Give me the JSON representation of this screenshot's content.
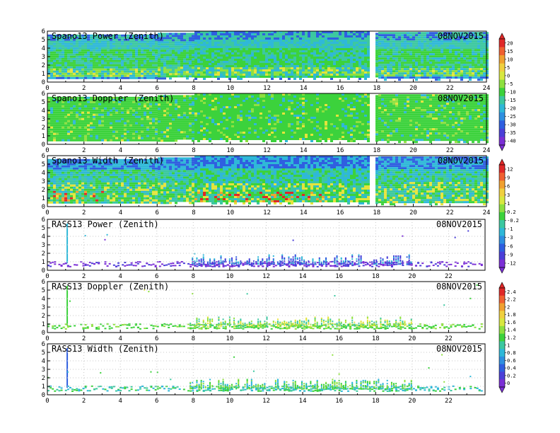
{
  "date": "08NOV2015",
  "xticks": [
    0,
    2,
    4,
    6,
    8,
    10,
    12,
    14,
    16,
    18,
    20,
    22,
    24
  ],
  "xticks_rass": [
    0,
    2,
    4,
    6,
    8,
    10,
    12,
    14,
    16,
    18,
    20,
    22
  ],
  "yticks": [
    0,
    1,
    2,
    3,
    4,
    5,
    6
  ],
  "colors": {
    "purple": "#7b2fd6",
    "blue": "#2f5fe0",
    "cyan": "#2fb8d8",
    "teal": "#3cc8a0",
    "green": "#3cd23c",
    "yellow": "#e4e43c",
    "orange": "#f0a030",
    "red": "#e02828"
  },
  "colorbars": [
    {
      "labels": [
        "20",
        "15",
        "10",
        "5",
        "0",
        "-5",
        "-10",
        "-15",
        "-20",
        "-25",
        "-30",
        "-35",
        "-40"
      ],
      "colors": [
        "#e02828",
        "#f06030",
        "#f0a030",
        "#f0d040",
        "#d8e840",
        "#8ee040",
        "#3cd23c",
        "#3cc8a0",
        "#2fb8d8",
        "#2f8fe0",
        "#2f5fe0",
        "#4b3fd8",
        "#7b2fd6"
      ]
    },
    {
      "labels": [
        "12",
        "9",
        "6",
        "3",
        "1",
        "0.2",
        "-0.2",
        "-1",
        "-3",
        "-6",
        "-9",
        "-12"
      ],
      "colors": [
        "#e02828",
        "#f06030",
        "#f0a030",
        "#f0d040",
        "#d8e840",
        "#8ee040",
        "#3cd23c",
        "#3cc8a0",
        "#2fb8d8",
        "#2f8fe0",
        "#2f5fe0",
        "#4b3fd8",
        "#7b2fd6"
      ]
    },
    {
      "labels": [
        "2.4",
        "2.2",
        "2",
        "1.8",
        "1.6",
        "1.4",
        "1.2",
        "1",
        "0.8",
        "0.6",
        "0.4",
        "0.2",
        "0"
      ],
      "colors": [
        "#e02828",
        "#f06030",
        "#f0a030",
        "#f0d040",
        "#d8e840",
        "#8ee040",
        "#3cd23c",
        "#3cc8a0",
        "#2fb8d8",
        "#2f8fe0",
        "#2f5fe0",
        "#4b3fd8",
        "#7b2fd6"
      ]
    }
  ],
  "chart_data": [
    {
      "type": "heatmap",
      "title": "Spano13 Power (Zenith)",
      "date": "08NOV2015",
      "xlim": [
        0,
        24
      ],
      "ylim": [
        0,
        6
      ],
      "description": "Spectral power vs time (h) and height (km); mostly cyan/green with blue at top, yellow-green band near 1-2 km",
      "coverage_hours": [
        0,
        24
      ],
      "top_height_km_by_hour": [
        [
          0,
          5.6
        ],
        [
          6,
          5.8
        ],
        [
          8,
          6
        ],
        [
          14,
          6
        ],
        [
          17.6,
          5.8
        ],
        [
          18,
          6
        ],
        [
          24,
          5.8
        ]
      ],
      "dominant_value_range": [
        -30,
        -5
      ]
    },
    {
      "type": "heatmap",
      "title": "Spano13 Doppler (Zenith)",
      "date": "08NOV2015",
      "xlim": [
        0,
        24
      ],
      "ylim": [
        0,
        6
      ],
      "description": "Doppler velocity mostly green near 0",
      "dominant_value_range": [
        -1,
        1
      ]
    },
    {
      "type": "heatmap",
      "title": "Spano13 Width (Zenith)",
      "date": "08NOV2015",
      "xlim": [
        0,
        24
      ],
      "ylim": [
        0,
        6
      ],
      "description": "Spectral width with red/yellow patches near 1 km between 8-15 h and 0-3 h"
    },
    {
      "type": "scatter",
      "title": "RASS13 Power (Zenith)",
      "date": "08NOV2015",
      "xlim": [
        0,
        24
      ],
      "ylim": [
        0,
        6
      ],
      "description": "Sparse points, dense band at 0.5-1 km (purple), columns up to 2 km between 8-20 h"
    },
    {
      "type": "scatter",
      "title": "RASS13 Doppler (Zenith)",
      "date": "08NOV2015",
      "xlim": [
        0,
        24
      ],
      "ylim": [
        0,
        6
      ],
      "description": "Points mostly green/yellow near 0.5-2 km between 8-20 h"
    },
    {
      "type": "scatter",
      "title": "RASS13 Width (Zenith)",
      "date": "08NOV2015",
      "xlim": [
        0,
        24
      ],
      "ylim": [
        0,
        6
      ],
      "description": "Points mostly green/cyan near 0.5-2 km between 8-20 h"
    }
  ]
}
